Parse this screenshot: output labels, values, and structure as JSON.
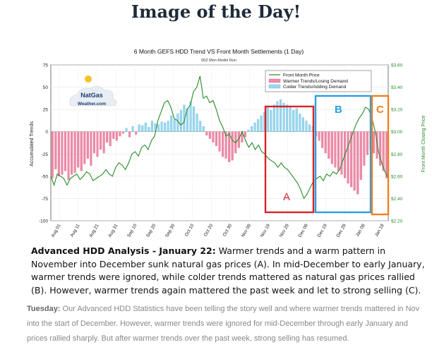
{
  "headline": "Image of the Day!",
  "chart_data": {
    "type": "bar+line",
    "title": "6 Month GEFS HDD Trend VS Front Month Settlements (1 Day)",
    "subtitle": "00Z Mon Model Run",
    "ylabel_left": "Accumulated Trends",
    "ylabel_right": "Front Month Closing Price",
    "ylim_left": [
      -100,
      75
    ],
    "ylim_right": [
      2.2,
      3.6
    ],
    "y_ticks_left": [
      "75",
      "50",
      "25",
      "0",
      "-25",
      "-50",
      "-75",
      "-100"
    ],
    "y_ticks_right": [
      "$3.60",
      "$3.40",
      "$3.20",
      "$3.00",
      "$2.80",
      "$2.60",
      "$2.40",
      "$2.20"
    ],
    "x_tick_labels": [
      "Aug 01",
      "Aug 11",
      "Aug 21",
      "Aug 31",
      "Sep 10",
      "Sep 20",
      "Sep 30",
      "Oct 10",
      "Oct 20",
      "Oct 30",
      "Nov 09",
      "Nov 19",
      "Nov 29",
      "Dec 09",
      "Dec 19",
      "Dec 29",
      "Jan 08",
      "Jan 18"
    ],
    "legend": [
      "Front Month Price",
      "Warmer Trends/Losing Demand",
      "Colder Trends/Adding Demand"
    ],
    "legend_position": "top-right",
    "colors": {
      "price": "#2a8a2a",
      "warmer": "#f08aa8",
      "colder": "#9ad8f0",
      "box_a": "#d8232a",
      "box_b": "#2aa0e0",
      "box_c": "#f08020"
    },
    "annotations": [
      "A",
      "B",
      "C"
    ],
    "price_series": [
      2.6,
      2.52,
      2.62,
      2.6,
      2.58,
      2.52,
      2.58,
      2.6,
      2.62,
      2.57,
      2.6,
      2.64,
      2.62,
      2.56,
      2.58,
      2.6,
      2.62,
      2.66,
      2.62,
      2.6,
      2.68,
      2.72,
      2.7,
      2.66,
      2.72,
      2.8,
      2.82,
      2.78,
      2.86,
      2.88,
      2.84,
      2.92,
      2.96,
      3.1,
      3.18,
      3.26,
      3.28,
      3.22,
      3.12,
      3.1,
      3.06,
      3.08,
      3.2,
      3.24,
      3.36,
      3.4,
      3.5,
      3.3,
      3.32,
      3.26,
      3.28,
      3.2,
      3.1,
      3.04,
      2.96,
      2.98,
      2.92,
      2.9,
      2.94,
      3.0,
      2.92,
      2.86,
      2.9,
      2.84,
      2.88,
      2.82,
      2.8,
      2.76,
      2.74,
      2.72,
      2.68,
      2.72,
      2.68,
      2.66,
      2.62,
      2.58,
      2.54,
      2.48,
      2.4,
      2.44,
      2.5,
      2.56,
      2.58,
      2.6,
      2.56,
      2.62,
      2.6,
      2.64,
      2.62,
      2.66,
      2.74,
      2.82,
      2.9,
      2.98,
      3.06,
      3.12,
      3.16,
      3.22,
      3.2,
      3.12,
      3.0,
      2.82,
      2.72,
      2.64,
      2.58
    ],
    "trend_bars": [
      -52,
      -42,
      -50,
      -48,
      -44,
      -54,
      -48,
      -46,
      -40,
      -44,
      -36,
      -30,
      -38,
      -24,
      -28,
      -20,
      -24,
      -12,
      -16,
      -8,
      -10,
      -5,
      -2,
      4,
      -6,
      6,
      -3,
      8,
      7,
      10,
      5,
      12,
      9,
      8,
      11,
      10,
      12,
      18,
      14,
      20,
      24,
      30,
      26,
      34,
      28,
      20,
      12,
      6,
      -4,
      -8,
      -12,
      -16,
      -22,
      -28,
      -30,
      -34,
      -32,
      -24,
      -18,
      -12,
      -6,
      2,
      6,
      10,
      14,
      18,
      22,
      28,
      24,
      30,
      34,
      36,
      32,
      30,
      28,
      24,
      26,
      20,
      16,
      12,
      8,
      6,
      -5,
      -10,
      -18,
      -24,
      -30,
      -36,
      -40,
      -44,
      -48,
      -52,
      -58,
      -62,
      -66,
      -70,
      -54,
      -38,
      -26,
      -20,
      -24,
      -30,
      -38,
      -44,
      -52
    ]
  },
  "caption": {
    "heading": "Advanced HDD Analysis - January 22:",
    "text": "Warmer trends and a warm pattern in November into December sunk natural gas prices (A). In mid-December to early January, warmer trends were ignored, while colder trends mattered as natural gas prices rallied (B). However, warmer trends again mattered the past week and let to strong selling (C)."
  },
  "body": {
    "lead": "Tuesday:",
    "text": "Our Advanced HDD Statistics have been telling the story well and where warmer trends mattered in Nov into the start of December. However, warmer trends were ignored for mid-December through early January and prices rallied sharply. But after warmer trends over the past week, strong selling has resumed."
  }
}
